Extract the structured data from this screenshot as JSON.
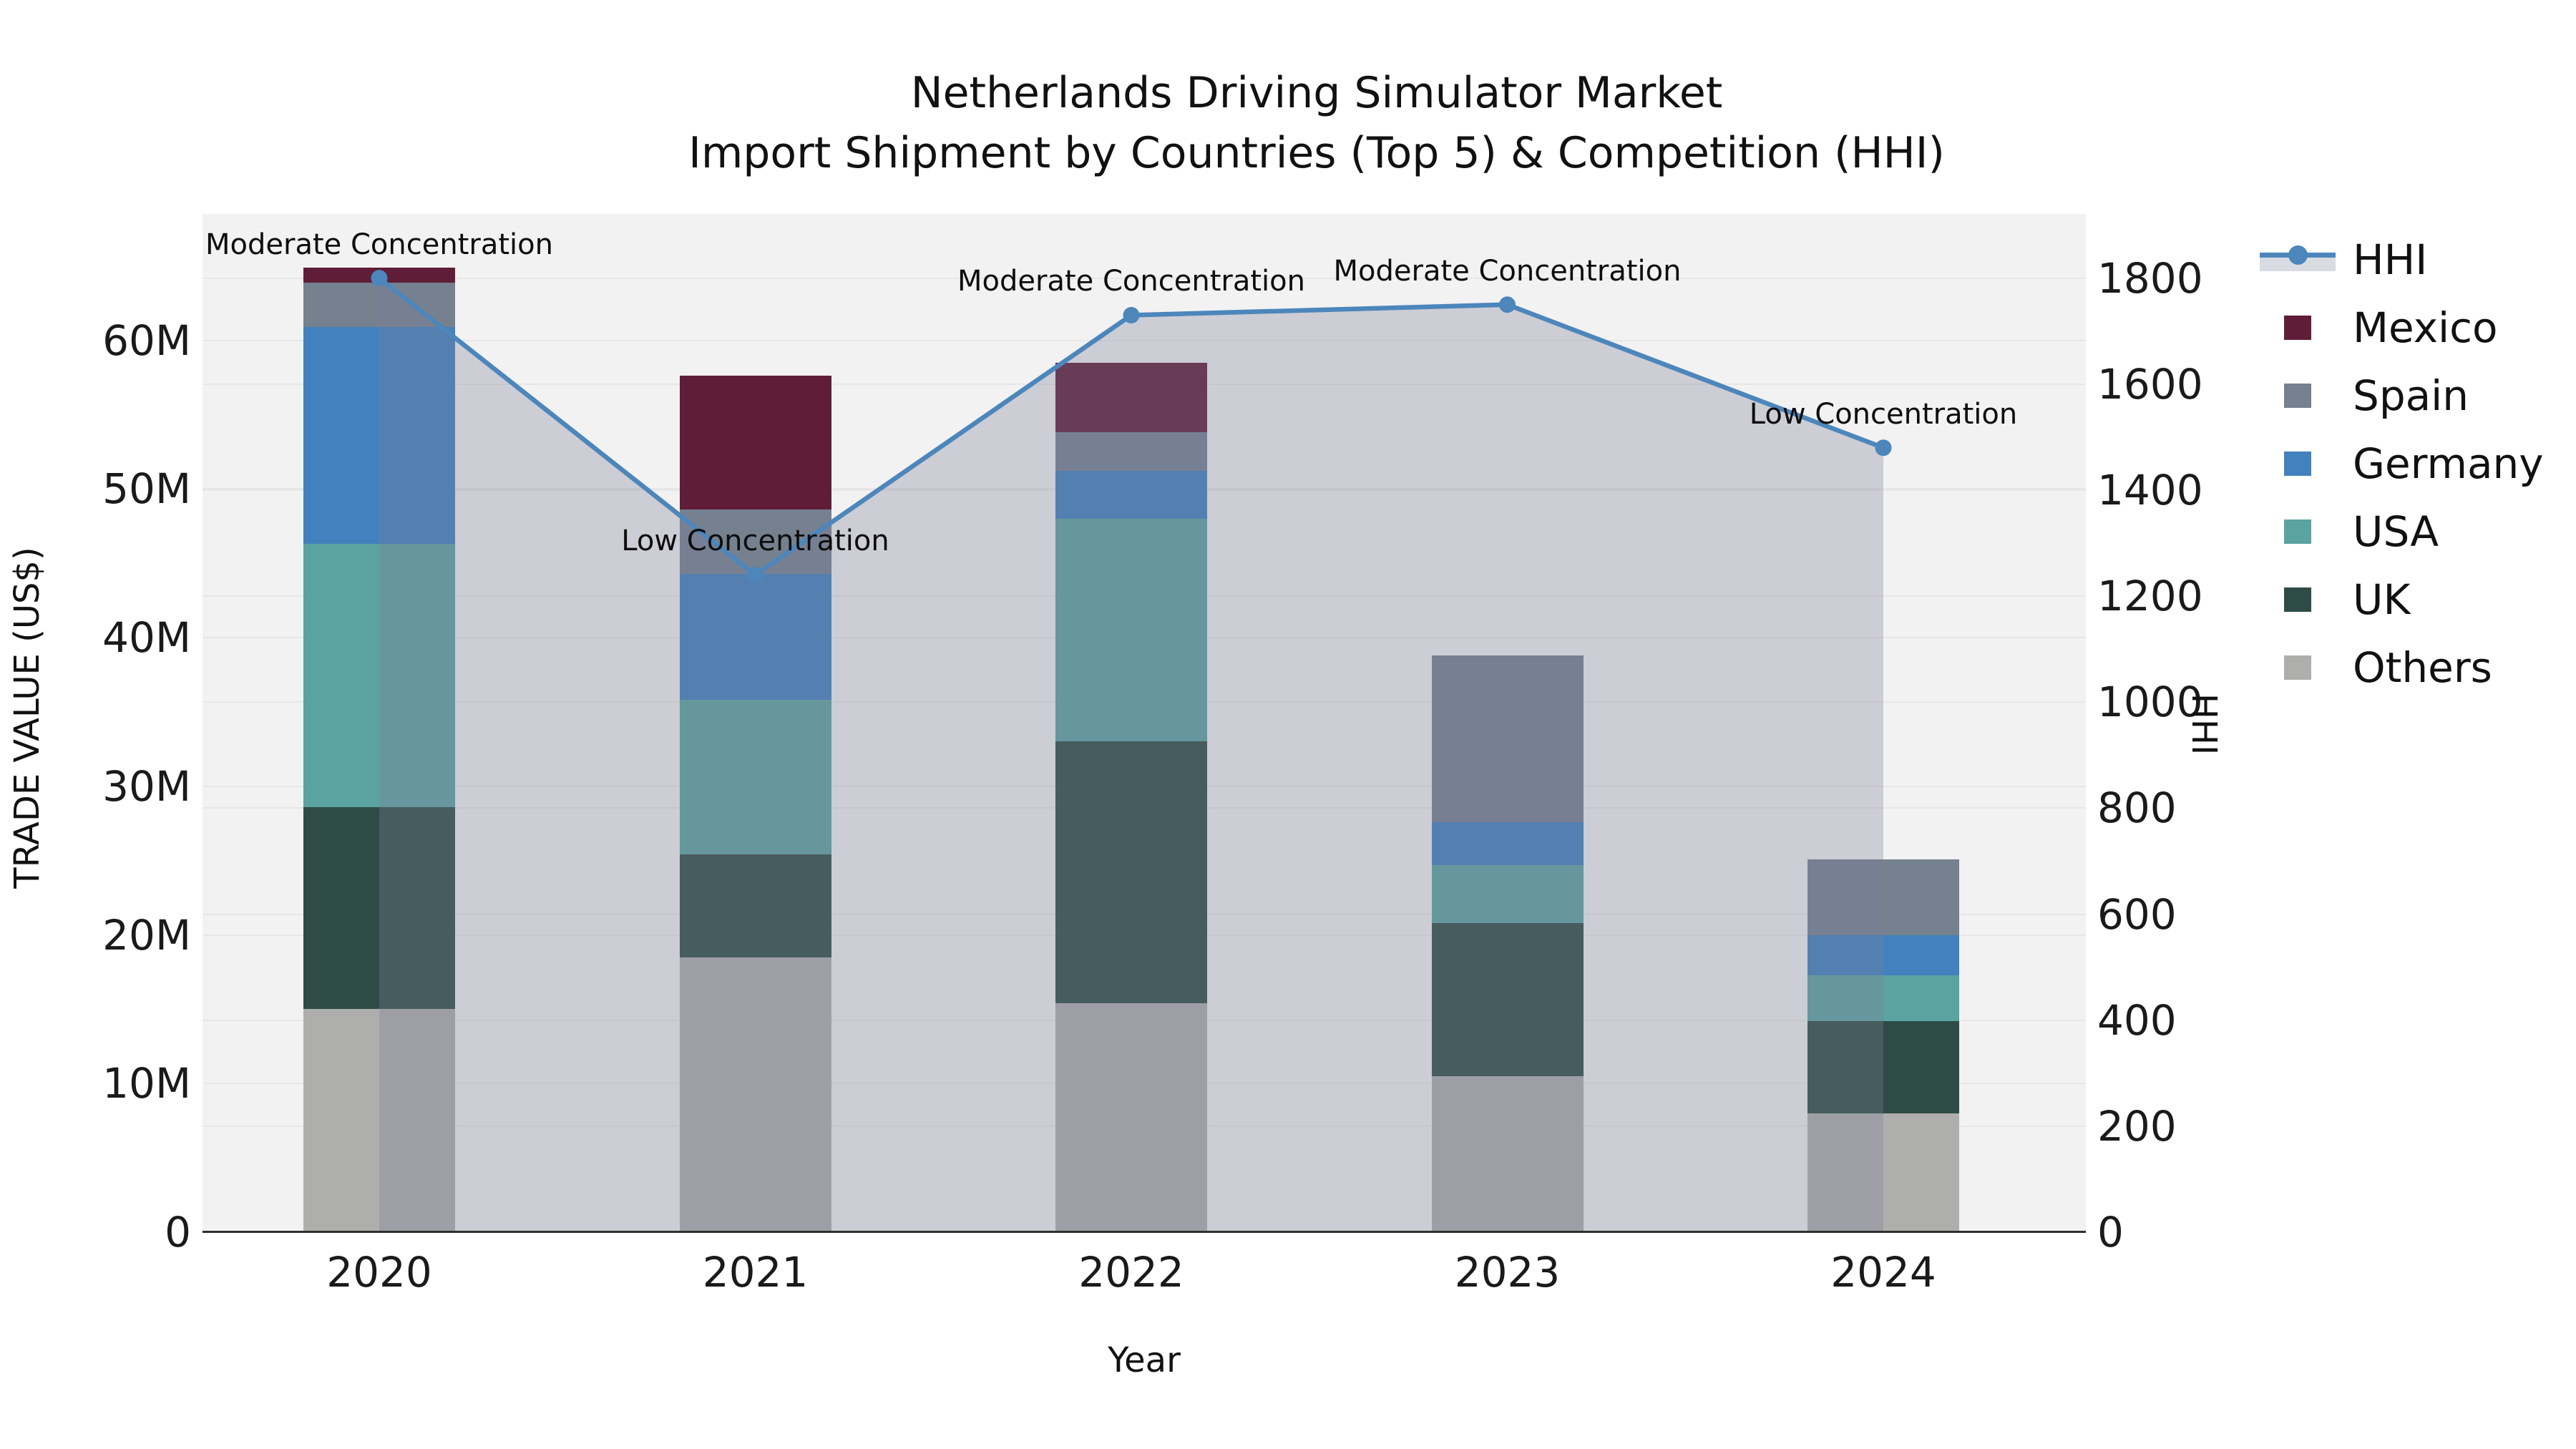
{
  "title": {
    "line1": "Netherlands Driving Simulator Market",
    "line2": "Import Shipment by Countries (Top 5) & Competition (HHI)"
  },
  "axes": {
    "x": {
      "label": "Year",
      "categories": [
        "2020",
        "2021",
        "2022",
        "2023",
        "2024"
      ]
    },
    "y_left": {
      "label": "TRADE VALUE (US$)",
      "tick_labels": [
        "0",
        "10M",
        "20M",
        "30M",
        "40M",
        "50M",
        "60M"
      ],
      "tick_values": [
        0,
        10,
        20,
        30,
        40,
        50,
        60
      ]
    },
    "y_right": {
      "label": "HHI",
      "tick_labels": [
        "0",
        "200",
        "400",
        "600",
        "800",
        "1000",
        "1200",
        "1400",
        "1600",
        "1800"
      ],
      "tick_values": [
        0,
        200,
        400,
        600,
        800,
        1000,
        1200,
        1400,
        1600,
        1800
      ]
    }
  },
  "legend": {
    "items": [
      {
        "label": "HHI",
        "type": "line",
        "color": "#4C86BB"
      },
      {
        "label": "Mexico",
        "type": "swatch",
        "color": "#5F1D38"
      },
      {
        "label": "Spain",
        "type": "swatch",
        "color": "#75818F"
      },
      {
        "label": "Germany",
        "type": "swatch",
        "color": "#4281BD"
      },
      {
        "label": "USA",
        "type": "swatch",
        "color": "#5AA3A0"
      },
      {
        "label": "UK",
        "type": "swatch",
        "color": "#2E4C45"
      },
      {
        "label": "Others",
        "type": "swatch",
        "color": "#AEAEAD"
      }
    ]
  },
  "chart_data": {
    "type": "bar",
    "subtype": "stacked-bar-with-line",
    "title": "Netherlands Driving Simulator Market — Import Shipment by Countries (Top 5) & Competition (HHI)",
    "xlabel": "Year",
    "ylabel_left": "TRADE VALUE (US$)",
    "ylabel_right": "HHI",
    "categories": [
      2020,
      2021,
      2022,
      2023,
      2024
    ],
    "bar_value_unit": "million US$",
    "stack_order_bottom_to_top": [
      "Others",
      "UK",
      "USA",
      "Germany",
      "Spain",
      "Mexico"
    ],
    "series": [
      {
        "name": "Mexico",
        "color": "#5F1D38",
        "values": [
          1.0,
          9.0,
          4.7,
          0,
          0
        ]
      },
      {
        "name": "Spain",
        "color": "#75818F",
        "values": [
          3.0,
          4.3,
          2.6,
          11.2,
          5.1
        ]
      },
      {
        "name": "Germany",
        "color": "#4281BD",
        "values": [
          14.6,
          8.5,
          3.2,
          2.9,
          2.7
        ]
      },
      {
        "name": "USA",
        "color": "#5AA3A0",
        "values": [
          17.7,
          10.4,
          15.0,
          3.9,
          3.1
        ]
      },
      {
        "name": "UK",
        "color": "#2E4C45",
        "values": [
          13.6,
          6.9,
          17.6,
          10.3,
          6.2
        ]
      },
      {
        "name": "Others",
        "color": "#AEAEAD",
        "values": [
          15.0,
          18.5,
          15.4,
          10.5,
          8.0
        ]
      }
    ],
    "bar_totals": [
      64.9,
      57.6,
      58.5,
      38.8,
      25.1
    ],
    "line": {
      "name": "HHI",
      "axis": "right",
      "color": "#4C86BB",
      "area_fill": "rgba(125,126,152,0.32)",
      "values": [
        1800,
        1240,
        1730,
        1750,
        1480
      ]
    },
    "annotations": [
      "Moderate Concentration",
      "Low Concentration",
      "Moderate Concentration",
      "Moderate Concentration",
      "Low Concentration"
    ],
    "ylim_left": [
      0,
      68.5
    ],
    "ylim_right": [
      0,
      1921
    ],
    "grid": "horizontal",
    "plot_bg": "#F2F2F2",
    "legend_position": "right"
  }
}
